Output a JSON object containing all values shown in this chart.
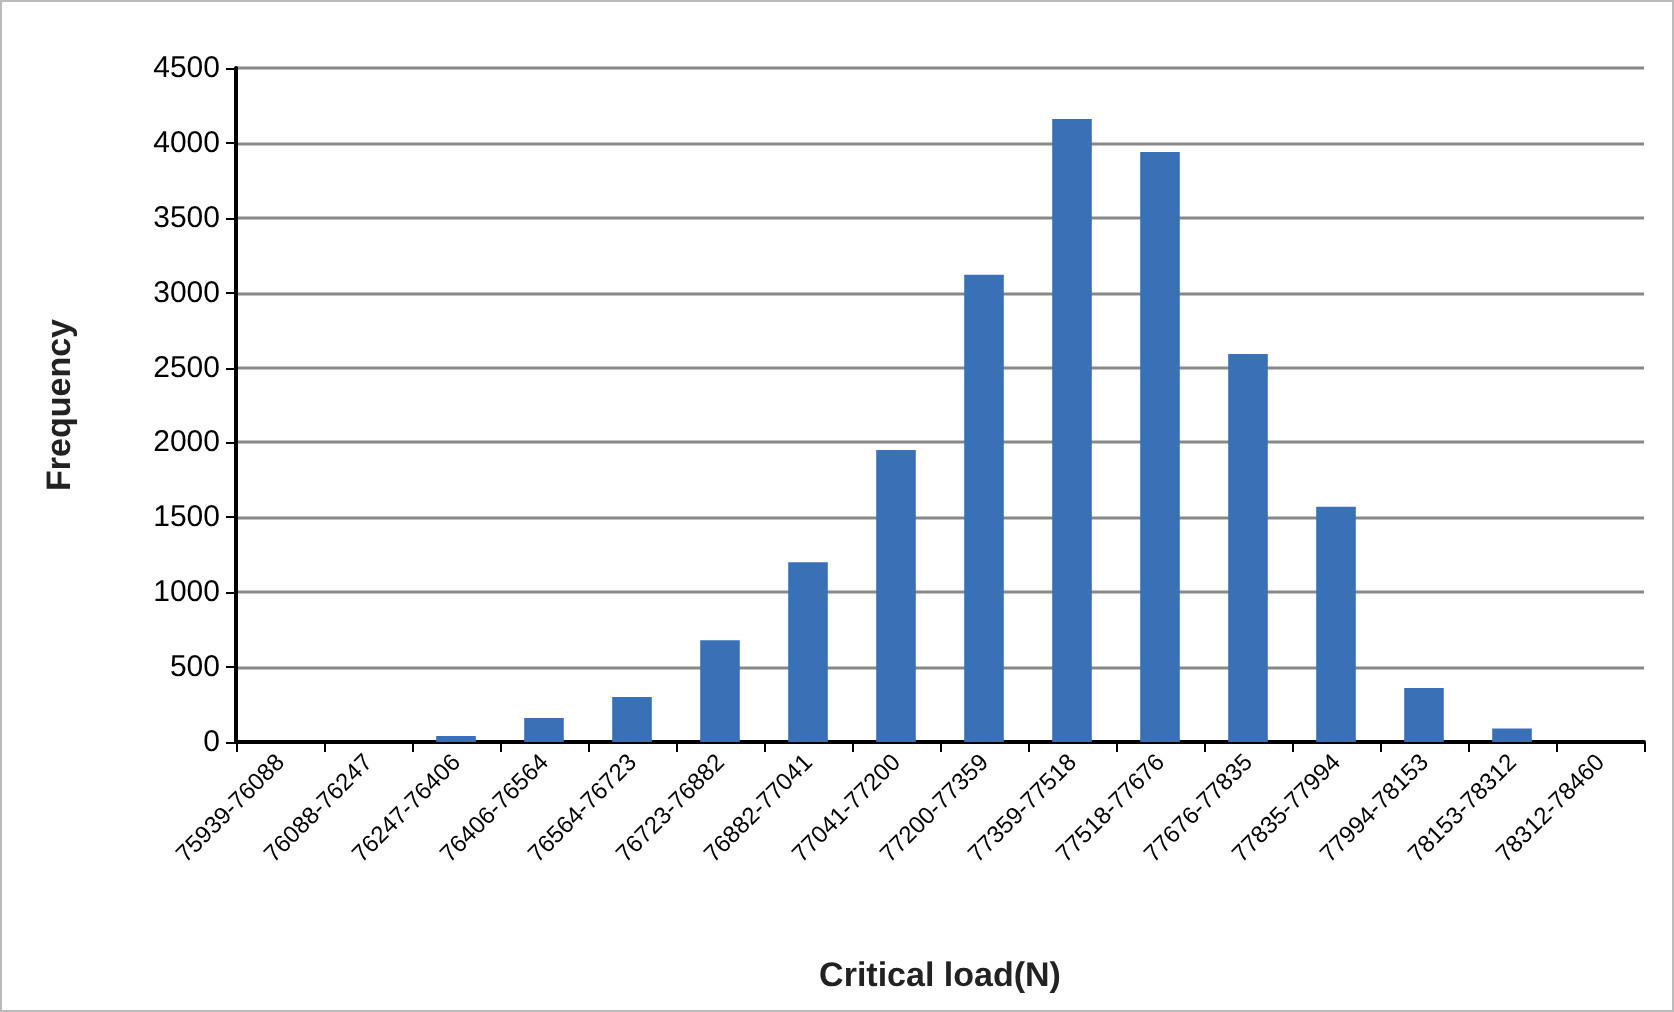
{
  "chart_data": {
    "type": "bar",
    "xlabel": "Critical load(N)",
    "ylabel": "Frequency",
    "categories": [
      "75939-76088",
      "76088-76247",
      "76247-76406",
      "76406-76564",
      "76564-76723",
      "76723-76882",
      "76882-77041",
      "77041-77200",
      "77200-77359",
      "77359-77518",
      "77518-77676",
      "77676-77835",
      "77835-77994",
      "77994-78153",
      "78153-78312",
      "78312-78460"
    ],
    "values": [
      0,
      0,
      40,
      160,
      300,
      680,
      1200,
      1950,
      3120,
      4160,
      3940,
      2590,
      1570,
      360,
      90,
      0
    ],
    "color": "#3a70b6",
    "ylim": [
      0,
      4500
    ],
    "yticks": [
      0,
      500,
      1000,
      1500,
      2000,
      2500,
      3000,
      3500,
      4000,
      4500
    ],
    "grid": "y"
  }
}
